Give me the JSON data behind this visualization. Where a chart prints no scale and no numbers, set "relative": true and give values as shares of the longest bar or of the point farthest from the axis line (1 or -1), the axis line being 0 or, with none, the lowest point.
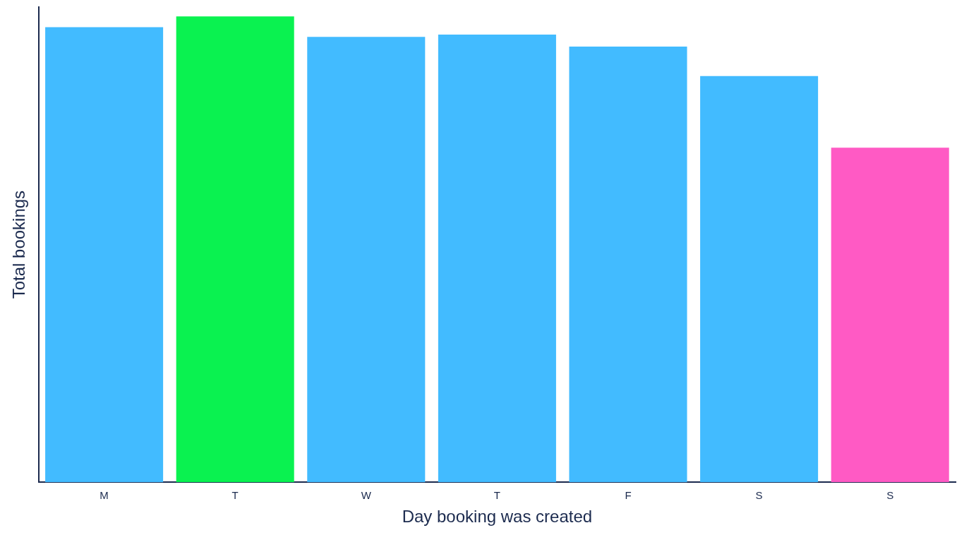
{
  "chart_data": {
    "type": "bar",
    "relative": true,
    "xlabel": "Day booking was created",
    "ylabel": "Total bookings",
    "categories": [
      "M",
      "T",
      "W",
      "T",
      "F",
      "S",
      "S"
    ],
    "values": [
      0.977,
      1,
      0.956,
      0.961,
      0.935,
      0.872,
      0.718
    ],
    "colors": [
      "#42bbff",
      "#0af250",
      "#42bbff",
      "#42bbff",
      "#42bbff",
      "#42bbff",
      "#ff5ac4"
    ],
    "grid": false,
    "legend": false
  }
}
